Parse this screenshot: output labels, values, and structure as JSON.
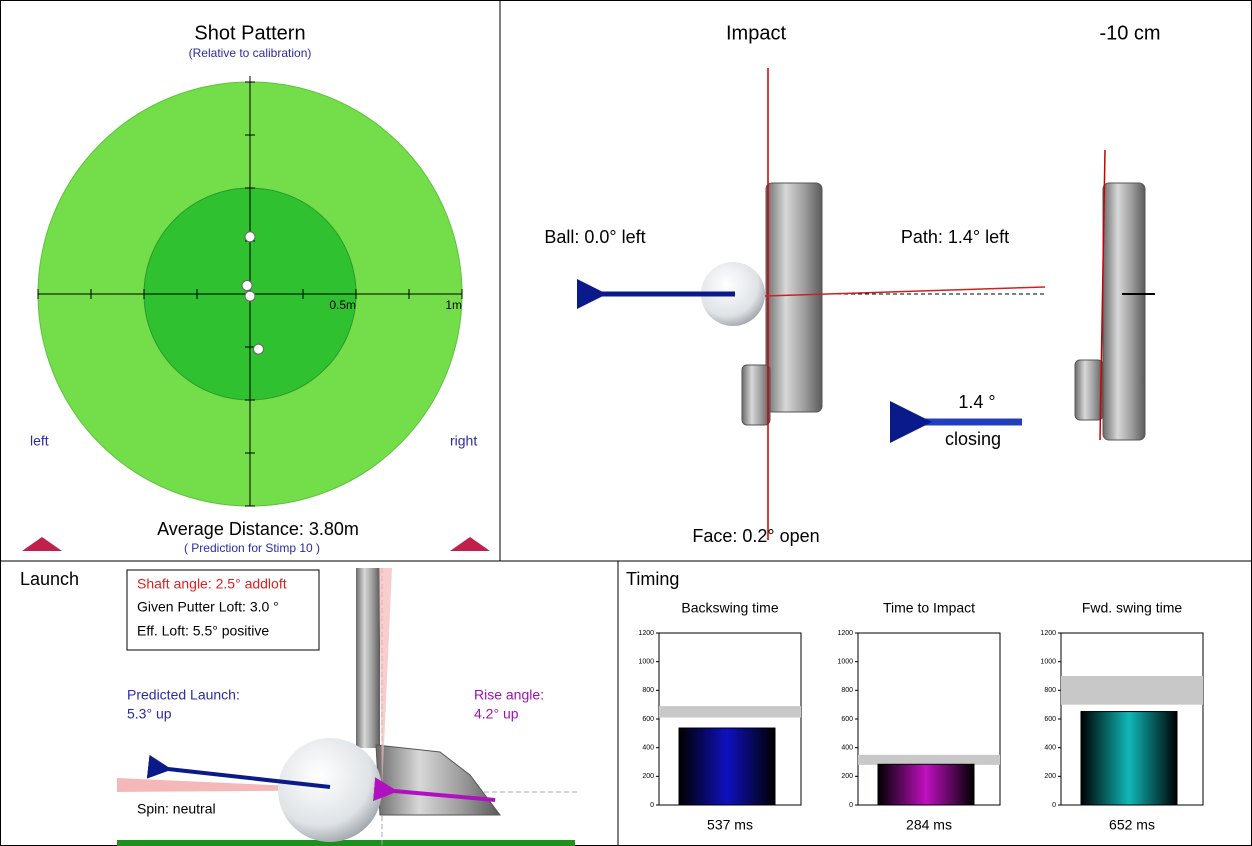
{
  "shot_pattern": {
    "title": "Shot Pattern",
    "subtitle": "(Relative to calibration)",
    "xlim": [
      -1,
      1
    ],
    "ylim": [
      -1,
      1
    ],
    "xticks": [
      {
        "value": 0.5,
        "label": "0.5m"
      },
      {
        "value": 1,
        "label": "1m"
      }
    ],
    "minor_ticks": [
      -1,
      -0.75,
      -0.5,
      -0.25,
      0.25,
      0.5,
      0.75,
      1
    ],
    "ring_colors": [
      "#74dd4a",
      "#2fc12f"
    ],
    "points": {
      "x": [
        0,
        -0.014,
        0,
        0.04
      ],
      "y": [
        0.27,
        0.04,
        -0.01,
        -0.26
      ]
    },
    "left": "left",
    "right": "right",
    "average_distance": "Average Distance: 3.80m",
    "prediction": "( Prediction for Stimp 10 )"
  },
  "impact": {
    "title": "Impact",
    "offset_title": "-10 cm",
    "ball": "Ball: 0.0° left",
    "path": "Path: 1.4° left",
    "face": "Face: 0.2° open",
    "rotation": "1.4 °",
    "rotation_note": "closing"
  },
  "launch": {
    "title": "Launch",
    "shaft_angle": "Shaft angle: 2.5° addloft",
    "putter_loft": "Given Putter Loft: 3.0 °",
    "eff_loft": "Eff. Loft: 5.5° positive",
    "predicted_launch": "Predicted Launch:",
    "predicted_launch_value": "5.3° up",
    "rise_angle": "Rise angle:",
    "rise_angle_value": "4.2° up",
    "spin": "Spin: neutral"
  },
  "timing": {
    "title": "Timing",
    "ylim": [
      0,
      1200
    ],
    "yticks": [
      0,
      200,
      400,
      600,
      800,
      1000,
      1200
    ],
    "charts": [
      {
        "title": "Backswing time",
        "value": 537,
        "value_label": "537 ms",
        "target_range": [
          610,
          690
        ],
        "color": "#1010c0"
      },
      {
        "title": "Time to Impact",
        "value": 284,
        "value_label": "284 ms",
        "target_range": [
          280,
          350
        ],
        "color": "#c010c0"
      },
      {
        "title": "Fwd. swing time",
        "value": 652,
        "value_label": "652 ms",
        "target_range": [
          700,
          900
        ],
        "color": "#10b8b8"
      }
    ]
  }
}
